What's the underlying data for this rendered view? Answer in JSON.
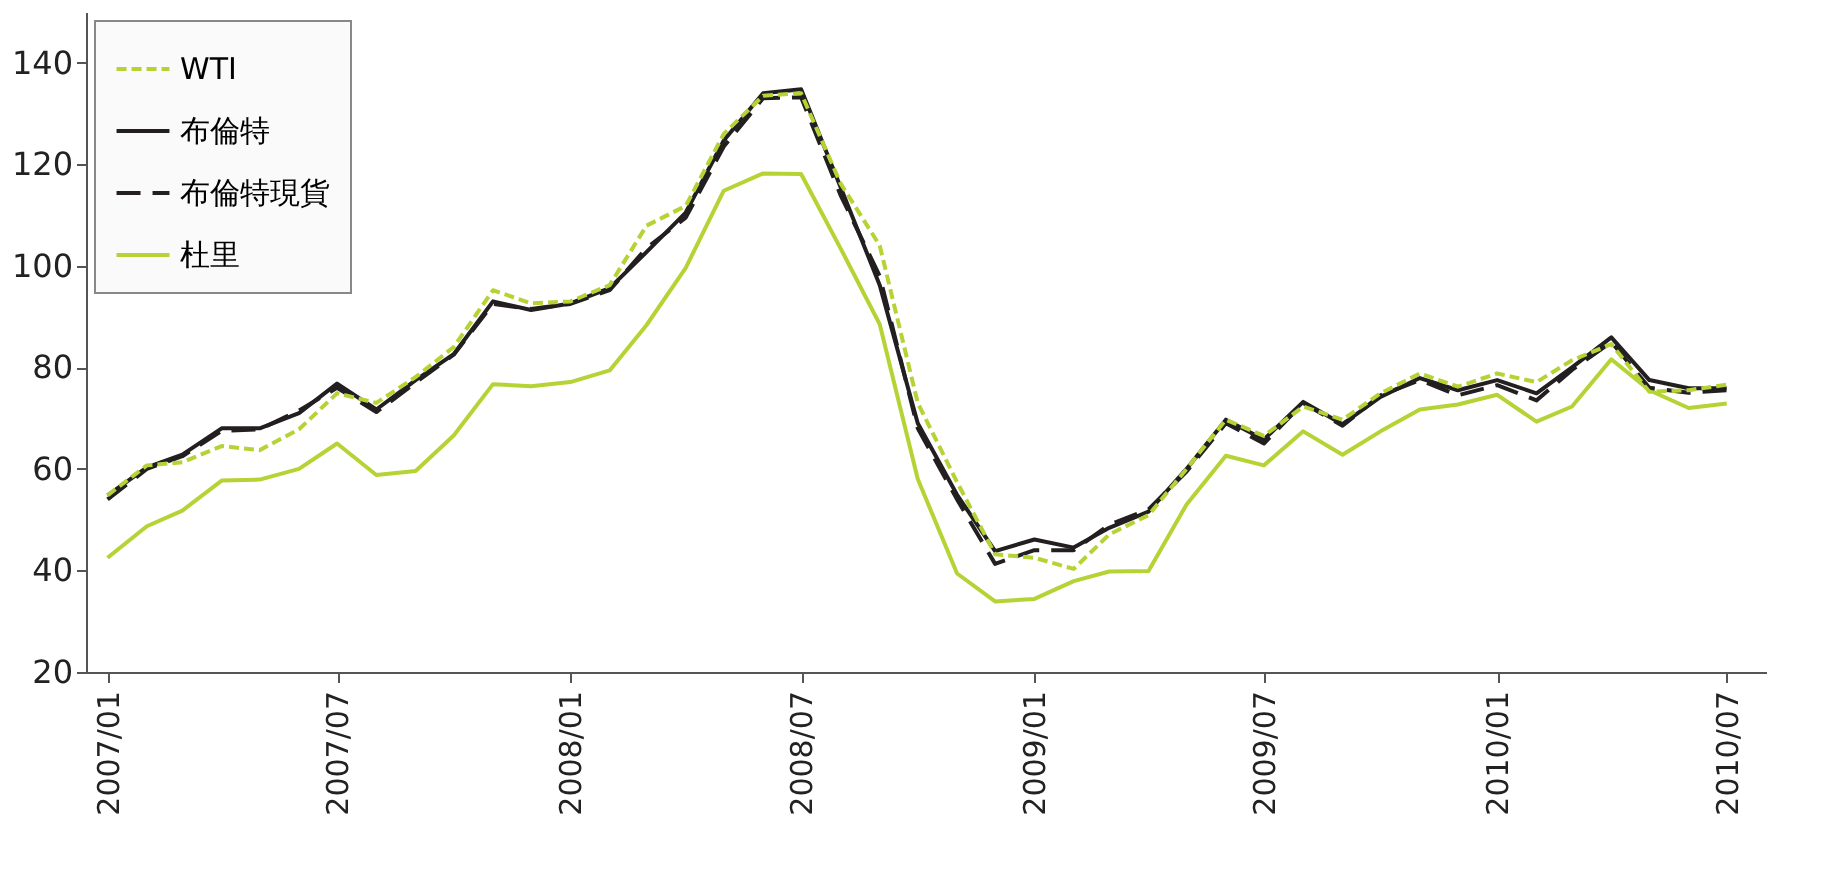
{
  "chart_data": {
    "type": "line",
    "x": [
      "2007-01",
      "2007-02",
      "2007-03",
      "2007-04",
      "2007-05",
      "2007-06",
      "2007-07",
      "2007-08",
      "2007-09",
      "2007-10",
      "2007-11",
      "2007-12",
      "2008-01",
      "2008-02",
      "2008-03",
      "2008-04",
      "2008-05",
      "2008-06",
      "2008-07",
      "2008-08",
      "2008-09",
      "2008-10",
      "2008-11",
      "2008-12",
      "2009-01",
      "2009-02",
      "2009-03",
      "2009-04",
      "2009-05",
      "2009-06",
      "2009-07",
      "2009-08",
      "2009-09",
      "2009-10",
      "2009-11",
      "2009-12",
      "2010-01",
      "2010-02",
      "2010-03",
      "2010-04",
      "2010-05",
      "2010-06",
      "2010-07"
    ],
    "series": [
      {
        "name": "WTI",
        "color": "#b5d334",
        "line_style": "dashed",
        "values": [
          54.8,
          60.7,
          61.3,
          64.5,
          63.7,
          67.8,
          74.9,
          73,
          78.1,
          84,
          95.2,
          92.6,
          93,
          96.2,
          107.9,
          111.8,
          126,
          133.5,
          134,
          116.3,
          104,
          73,
          57.4,
          43.2,
          42.5,
          40.3,
          47.1,
          50.9,
          60,
          69.7,
          66.5,
          72.3,
          69.7,
          74.9,
          78.8,
          76.2,
          78.8,
          77.1,
          81.4,
          84.6,
          75.2,
          75.5,
          76.6
        ]
      },
      {
        "name": "布倫特",
        "color": "#231f20",
        "line_style": "solid",
        "values": [
          54.8,
          60.3,
          62.8,
          68,
          68,
          71,
          76.8,
          71.7,
          77.5,
          82.6,
          93,
          91.3,
          92.6,
          95.6,
          102.7,
          110.5,
          124.7,
          134,
          134.8,
          115.6,
          96.2,
          69,
          54.9,
          43.8,
          46.1,
          44.5,
          48.4,
          51.6,
          60,
          69.7,
          65.8,
          73.2,
          68.8,
          74.2,
          77.9,
          75.5,
          77.5,
          74.9,
          80,
          85.9,
          77.5,
          75.9,
          75.9
        ]
      },
      {
        "name": "布倫特現貨",
        "color": "#231f20",
        "line_style": "longdash",
        "values": [
          54,
          60,
          62.5,
          67.5,
          67.8,
          71.5,
          76,
          71.2,
          77,
          82.5,
          92.5,
          91.5,
          92.5,
          95.2,
          103.5,
          109.5,
          123.5,
          133,
          133.2,
          114,
          98,
          68,
          54,
          41.3,
          44,
          44,
          49,
          52,
          59.5,
          69,
          65,
          73,
          68.5,
          74.5,
          77.5,
          74.5,
          76.5,
          73.5,
          79.5,
          85,
          76,
          75,
          75.5
        ]
      },
      {
        "name": "杜里",
        "color": "#b5d334",
        "line_style": "solid",
        "values": [
          42.5,
          48.7,
          51.8,
          57.7,
          57.9,
          60,
          65,
          58.8,
          59.6,
          66.6,
          76.7,
          76.3,
          77.1,
          79.4,
          88.3,
          99.6,
          114.8,
          118.2,
          118.1,
          103.5,
          88.5,
          58,
          39.4,
          33.9,
          34.4,
          37.9,
          39.8,
          39.9,
          53,
          62.6,
          60.7,
          67.4,
          62.8,
          67.4,
          71.7,
          72.7,
          74.6,
          69.3,
          72.3,
          81.6,
          75.5,
          72,
          72.9
        ]
      }
    ],
    "xlim": [
      "2006-12-15",
      "2010-08-01"
    ],
    "xticks": [
      {
        "value": "2007-01",
        "label": "2007/01"
      },
      {
        "value": "2007-07",
        "label": "2007/07"
      },
      {
        "value": "2008-01",
        "label": "2008/01"
      },
      {
        "value": "2008-07",
        "label": "2008/07"
      },
      {
        "value": "2009-01",
        "label": "2009/01"
      },
      {
        "value": "2009-07",
        "label": "2009/07"
      },
      {
        "value": "2010-01",
        "label": "2010/01"
      },
      {
        "value": "2010-07",
        "label": "2010/07"
      }
    ],
    "ylim": [
      20,
      150
    ],
    "yticks": [
      20,
      40,
      60,
      80,
      100,
      120,
      140
    ],
    "grid": false,
    "legend": "top left"
  }
}
